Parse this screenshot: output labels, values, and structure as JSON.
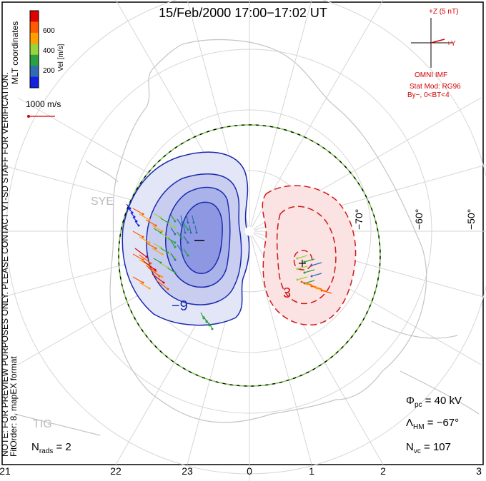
{
  "title": "15/Feb/2000 17:00−17:02 UT",
  "colorbar": {
    "unit": "Vel [m/s]",
    "ticks": [
      "600",
      "400",
      "200"
    ],
    "colors": [
      "#e00000",
      "#ff5a00",
      "#ffa000",
      "#9ad33a",
      "#2aa040",
      "#2f6db0",
      "#1520e0"
    ]
  },
  "mlt_label": "MLT coordinates",
  "reference_vector": "1000 m/s",
  "imf": {
    "scale": "+Z (5 nT)",
    "y_label": "+Y",
    "source": "OMNI IMF",
    "model": "Stat Mod: RG96",
    "condition": "By−, 0<BT<4"
  },
  "contour_labels": {
    "negative": "−9",
    "positive": "3"
  },
  "potential_min_marker": "–",
  "potential_max_marker": "+",
  "latitude_labels": [
    "−70°",
    "−60°",
    "−50°"
  ],
  "mlt_ticks": [
    "21",
    "22",
    "23",
    "0",
    "1",
    "2",
    "3"
  ],
  "sites": [
    "SYE",
    "TIG"
  ],
  "stats": {
    "phi_symbol": "Φ",
    "phi_sub": "pc",
    "phi_value": "= 40 kV",
    "lambda_symbol": "Λ",
    "lambda_sub": "HM",
    "lambda_value": "= −67°",
    "nvc_symbol": "N",
    "nvc_sub": "vc",
    "nvc_value": "= 107",
    "nrads_symbol": "N",
    "nrads_sub": "rads",
    "nrads_value": "= 2"
  },
  "side_notes": {
    "preview": "NOTE: FOR PREVIEW PURPOSES ONLY. PLEASE CONTACT VT-SD STAFF FOR VERIFICATION.",
    "fit": "FitOrder: 8, mapEX format"
  },
  "colors": {
    "negative_cell": "#1a2ab0",
    "positive_cell": "#d01818",
    "imf_text": "#d40000",
    "coastline": "#c4c4c4",
    "grid": "#d6d6d6",
    "hmb_dash": "#7ac943"
  }
}
